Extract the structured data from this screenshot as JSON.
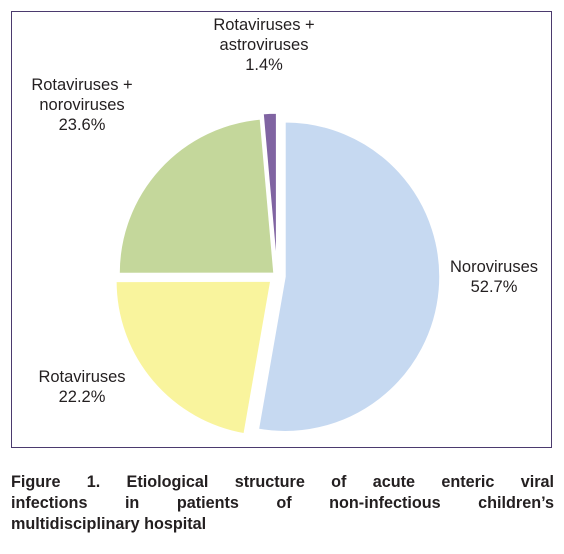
{
  "caption": {
    "lines": [
      "Figure 1. Etiological structure of acute enteric viral",
      "infections in patients of non-infectious children’s",
      "multidisciplinary hospital"
    ]
  },
  "chart_data": {
    "type": "pie",
    "title": "",
    "slices": [
      {
        "name": "Noroviruses",
        "value": 52.7,
        "label": "52.7%",
        "name_lines": [
          "Noroviruses"
        ],
        "color": "#c6d9f1"
      },
      {
        "name": "Rotaviruses",
        "value": 22.2,
        "label": "22.2%",
        "name_lines": [
          "Rotaviruses"
        ],
        "color": "#f9f49d"
      },
      {
        "name": "Rotaviruses + noroviruses",
        "value": 23.6,
        "label": "23.6%",
        "name_lines": [
          "Rotaviruses +",
          "noroviruses"
        ],
        "color": "#c4d79b"
      },
      {
        "name": "Rotaviruses + astroviruses",
        "value": 1.4,
        "label": "1.4%",
        "name_lines": [
          "Rotaviruses +",
          "astroviruses"
        ],
        "color": "#8064a2"
      }
    ],
    "start_angle_deg": 0,
    "direction": "clockwise",
    "exploded": true,
    "legend": "none"
  }
}
